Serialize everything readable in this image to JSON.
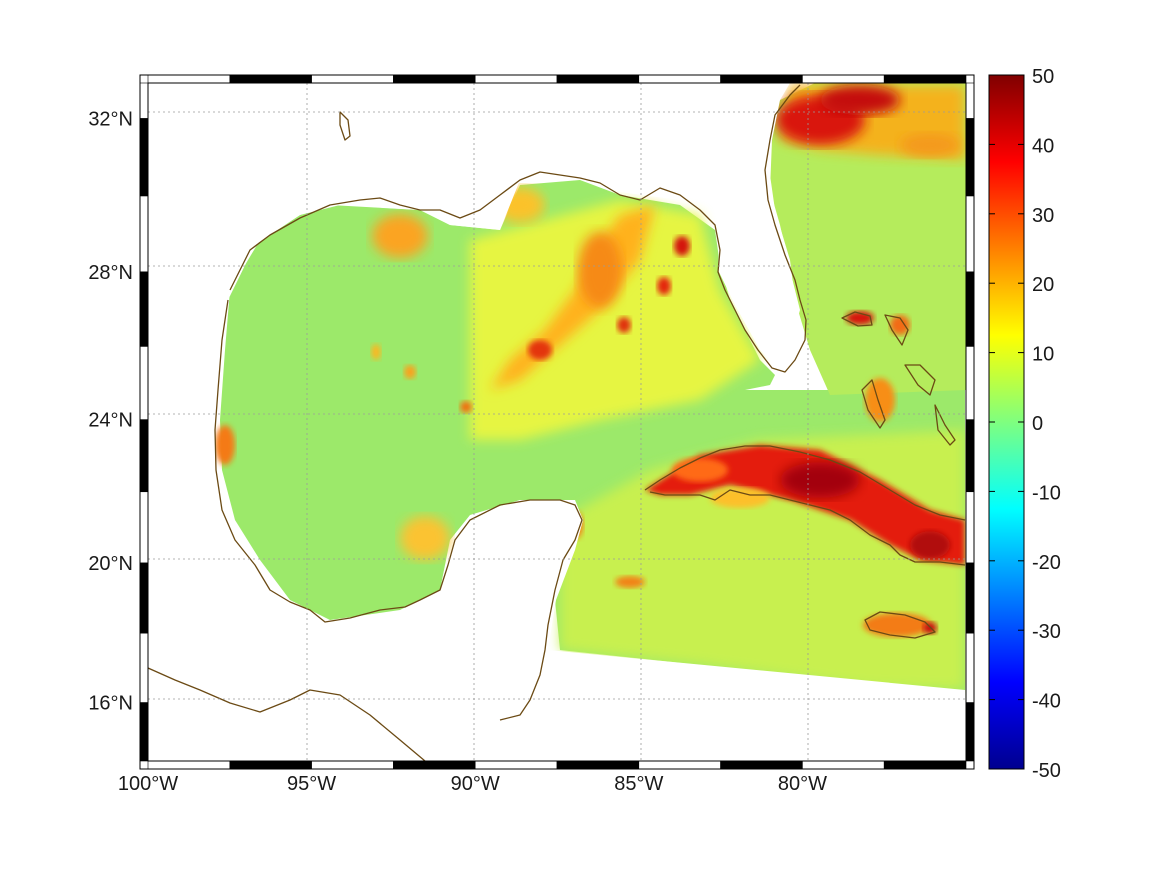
{
  "map": {
    "projection": "mercator",
    "lon_range": [
      -100,
      -75
    ],
    "lat_range": [
      14.3,
      32.9
    ],
    "lon_ticks": [
      {
        "value": -100,
        "label": "100°W"
      },
      {
        "value": -95,
        "label": "95°W"
      },
      {
        "value": -90,
        "label": "90°W"
      },
      {
        "value": -85,
        "label": "85°W"
      },
      {
        "value": -80,
        "label": "80°W"
      }
    ],
    "lat_ticks": [
      {
        "value": 32,
        "label": "32°N"
      },
      {
        "value": 28,
        "label": "28°N"
      },
      {
        "value": 24,
        "label": "24°N"
      },
      {
        "value": 20,
        "label": "20°N"
      },
      {
        "value": 16,
        "label": "16°N"
      }
    ],
    "grid": true,
    "coastline_color": "#6b4a14",
    "ocean_background": "#ffffff"
  },
  "colorbar": {
    "min": -50,
    "max": 50,
    "colormap": "jet",
    "tick_labels": [
      "50",
      "40",
      "30",
      "20",
      "10",
      "0",
      "-10",
      "-20",
      "-30",
      "-40",
      "-50"
    ]
  }
}
